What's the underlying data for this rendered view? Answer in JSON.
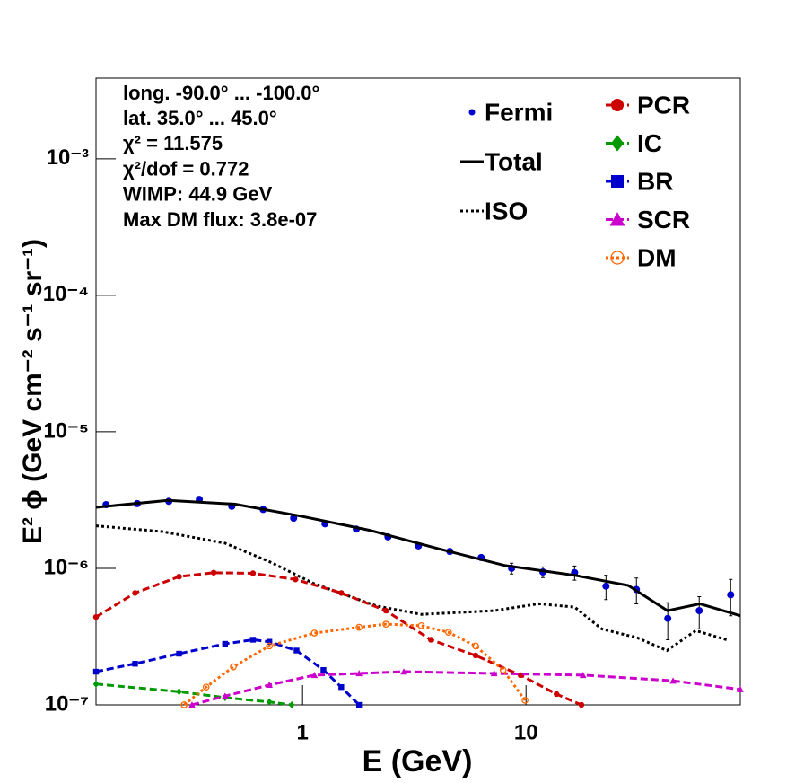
{
  "chart_data": {
    "type": "line",
    "log_x": true,
    "log_y": true,
    "xlabel": "E (GeV)",
    "ylabel": "E² ϕ (GeV cm⁻² s⁻¹ sr⁻¹)",
    "annotations": [
      "long. -90.0° ... -100.0°",
      "lat. 35.0° ... 45.0°",
      "χ² = 11.575",
      "χ²/dof = 0.772",
      "WIMP: 44.9 GeV",
      "Max DM flux: 3.8e-07"
    ],
    "xlim": [
      0.119,
      91
    ],
    "ylim": [
      1e-07,
      0.0039
    ],
    "xticks": [
      1,
      10
    ],
    "yticks": [
      {
        "value": 1e-07,
        "label": "10⁻⁷"
      },
      {
        "value": 1e-06,
        "label": "10⁻⁶"
      },
      {
        "value": 1e-05,
        "label": "10⁻⁵"
      },
      {
        "value": 0.0001,
        "label": "10⁻⁴"
      },
      {
        "value": 0.001,
        "label": "10⁻³"
      }
    ],
    "series": [
      {
        "name": "Fermi",
        "color": "#0000cc",
        "marker": "circle",
        "dash": "none",
        "x": [
          0.132,
          0.182,
          0.252,
          0.345,
          0.482,
          0.666,
          0.912,
          1.26,
          1.74,
          2.41,
          3.3,
          4.56,
          6.3,
          8.62,
          11.9,
          16.5,
          22.8,
          31.2,
          43.1,
          59.6,
          82.4
        ],
        "values": [
          2.93e-06,
          2.98e-06,
          3.1e-06,
          3.2e-06,
          2.85e-06,
          2.7e-06,
          2.33e-06,
          2.12e-06,
          1.94e-06,
          1.7e-06,
          1.46e-06,
          1.33e-06,
          1.2e-06,
          1e-06,
          9.4e-07,
          9.3e-07,
          7.4e-07,
          7e-07,
          4.3e-07,
          4.9e-07,
          6.4e-07
        ],
        "errors": [
          3e-08,
          3e-08,
          3e-08,
          3e-08,
          3e-08,
          3e-08,
          3e-08,
          3e-08,
          3e-08,
          3e-08,
          3e-08,
          3e-08,
          5e-08,
          9e-08,
          8.5e-08,
          1.1e-07,
          1.5e-07,
          1.5e-07,
          1.3e-07,
          1.3e-07,
          1.9e-07
        ]
      },
      {
        "name": "Total",
        "color": "#000000",
        "marker": "none",
        "dash": "solid",
        "x": [
          0.119,
          0.25,
          0.5,
          1,
          2,
          4,
          8,
          16.5,
          28.7,
          43,
          60,
          91
        ],
        "values": [
          2.8e-06,
          3.15e-06,
          2.95e-06,
          2.4e-06,
          1.9e-06,
          1.4e-06,
          1.05e-06,
          8.9e-07,
          7.5e-07,
          4.9e-07,
          5.5e-07,
          4.5e-07
        ]
      },
      {
        "name": "ISO",
        "color": "#000000",
        "marker": "none",
        "dash": "dotted",
        "x": [
          0.119,
          0.235,
          0.45,
          0.71,
          1.13,
          2.15,
          3.4,
          7.2,
          11.4,
          16.5,
          21.8,
          31.5,
          42.7,
          57.5,
          79
        ],
        "values": [
          2.05e-06,
          1.86e-06,
          1.53e-06,
          1.12e-06,
          7.7e-07,
          5.3e-07,
          4.6e-07,
          4.9e-07,
          5.5e-07,
          5.2e-07,
          3.6e-07,
          3.1e-07,
          2.5e-07,
          3.5e-07,
          3e-07
        ]
      },
      {
        "name": "PCR",
        "color": "#cc0000",
        "marker": "circle",
        "dash": "dashed",
        "x": [
          0.119,
          0.178,
          0.28,
          0.4,
          0.6,
          0.93,
          1.49,
          2.36,
          3.75,
          5.95,
          9.45,
          13.7,
          17.7
        ],
        "values": [
          4.4e-07,
          6.6e-07,
          8.7e-07,
          9.3e-07,
          9.2e-07,
          8.3e-07,
          6.6e-07,
          4.9e-07,
          3e-07,
          2.3e-07,
          1.65e-07,
          1.2e-07,
          1e-07
        ]
      },
      {
        "name": "IC",
        "color": "#009900",
        "marker": "diamond",
        "dash": "dashed",
        "x": [
          0.119,
          0.28,
          0.45,
          0.71,
          0.895
        ],
        "values": [
          1.42e-07,
          1.25e-07,
          1.13e-07,
          1.05e-07,
          1e-07
        ]
      },
      {
        "name": "BR",
        "color": "#0000cc",
        "marker": "square",
        "dash": "dashed",
        "x": [
          0.119,
          0.178,
          0.28,
          0.45,
          0.6,
          0.71,
          0.94,
          1.24,
          1.49,
          1.79
        ],
        "values": [
          1.75e-07,
          2e-07,
          2.37e-07,
          2.8e-07,
          3e-07,
          2.9e-07,
          2.5e-07,
          1.8e-07,
          1.35e-07,
          1e-07
        ]
      },
      {
        "name": "SCR",
        "color": "#cc00cc",
        "marker": "triangle",
        "dash": "dashed",
        "x": [
          0.32,
          0.45,
          0.71,
          1.13,
          1.79,
          2.84,
          7.2,
          18,
          45.5,
          91
        ],
        "values": [
          1e-07,
          1.16e-07,
          1.4e-07,
          1.65e-07,
          1.7e-07,
          1.75e-07,
          1.7e-07,
          1.65e-07,
          1.5e-07,
          1.3e-07
        ]
      },
      {
        "name": "DM",
        "color": "#ff6600",
        "marker": "open-circle",
        "dash": "dotted",
        "x": [
          0.295,
          0.37,
          0.49,
          0.71,
          1.13,
          1.79,
          2.36,
          3.4,
          4.5,
          5.95,
          7.9,
          9.9
        ],
        "values": [
          1e-07,
          1.35e-07,
          1.9e-07,
          2.7e-07,
          3.36e-07,
          3.7e-07,
          3.9e-07,
          3.8e-07,
          3.4e-07,
          2.7e-07,
          1.8e-07,
          1.08e-07
        ]
      }
    ]
  }
}
